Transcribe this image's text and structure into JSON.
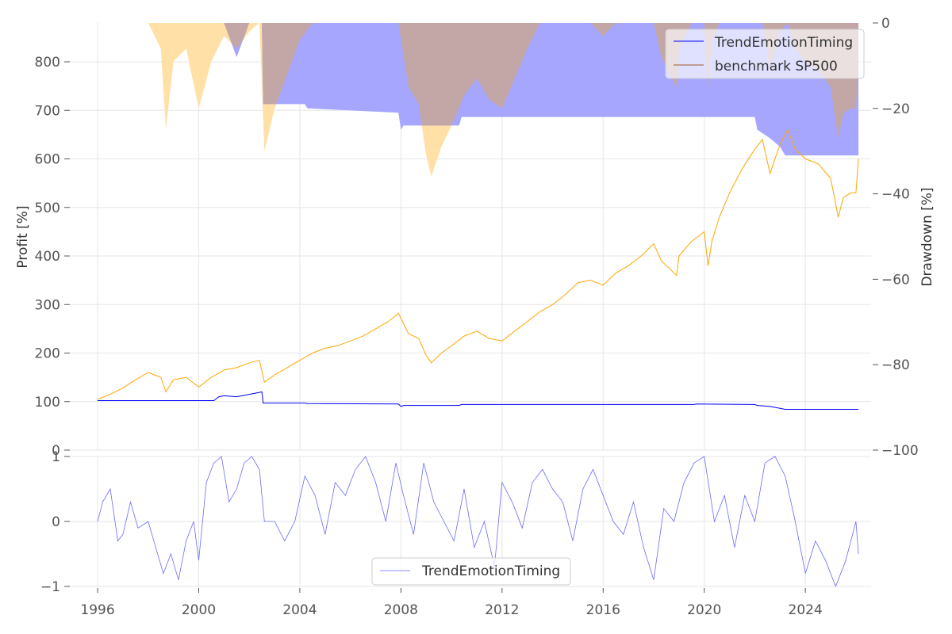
{
  "chart_data": [
    {
      "type": "line+area",
      "panel": "top",
      "title": "",
      "xlabel": "",
      "ylabel": "Profit [%]",
      "ylabel_right": "Drawdown [%]",
      "xlim": [
        1994.9,
        2026.6
      ],
      "ylim": [
        0,
        880
      ],
      "ylim_right": [
        -100,
        0
      ],
      "yticks": [
        0,
        100,
        200,
        300,
        400,
        500,
        600,
        700,
        800
      ],
      "yticks_right": [
        0,
        -20,
        -40,
        -60,
        -80,
        -100
      ],
      "legend": {
        "position": "top-right",
        "entries": [
          "TrendEmotionTiming",
          "benchmark SP500"
        ]
      },
      "colors": {
        "strategy": "#0000ff",
        "benchmark": "#ffa500",
        "strategy_dd": "#a6a6ff",
        "benchmark_dd": "#ffe1a8",
        "overlap_dd": "#c3a6a6",
        "grid": "#e6e6e6"
      },
      "series": [
        {
          "name": "TrendEmotionTiming",
          "axis": "left",
          "x": [
            1996.0,
            2000.6,
            2000.8,
            2001.0,
            2001.5,
            2002.0,
            2002.5,
            2002.55,
            2004.2,
            2004.3,
            2007.9,
            2008.0,
            2008.1,
            2010.3,
            2010.4,
            2016.0,
            2019.6,
            2019.7,
            2022.0,
            2022.1,
            2022.6,
            2023.0,
            2023.2,
            2024.0,
            2026.1
          ],
          "values": [
            102,
            102,
            110,
            112,
            110,
            115,
            120,
            97,
            97,
            96,
            95,
            90,
            92,
            92,
            94,
            94,
            94,
            95,
            94,
            92,
            90,
            86,
            84,
            84,
            84
          ]
        },
        {
          "name": "benchmark SP500",
          "axis": "left",
          "x": [
            1996.0,
            1996.5,
            1997.0,
            1997.5,
            1998.0,
            1998.5,
            1998.7,
            1999.0,
            1999.5,
            2000.0,
            2000.5,
            2001.0,
            2001.5,
            2002.0,
            2002.4,
            2002.6,
            2003.0,
            2003.5,
            2004.0,
            2004.5,
            2005.0,
            2005.5,
            2006.0,
            2006.5,
            2007.0,
            2007.5,
            2007.9,
            2008.3,
            2008.7,
            2009.0,
            2009.2,
            2009.6,
            2010.0,
            2010.5,
            2011.0,
            2011.5,
            2012.0,
            2012.5,
            2013.0,
            2013.5,
            2014.0,
            2014.5,
            2015.0,
            2015.5,
            2016.0,
            2016.5,
            2017.0,
            2017.5,
            2018.0,
            2018.3,
            2018.9,
            2019.0,
            2019.5,
            2020.0,
            2020.15,
            2020.3,
            2020.6,
            2021.0,
            2021.5,
            2022.0,
            2022.3,
            2022.6,
            2022.8,
            2023.0,
            2023.3,
            2023.6,
            2024.0,
            2024.5,
            2025.0,
            2025.3,
            2025.5,
            2025.8,
            2026.0,
            2026.1
          ],
          "values": [
            105,
            115,
            128,
            145,
            160,
            150,
            120,
            145,
            150,
            130,
            150,
            165,
            170,
            180,
            185,
            140,
            155,
            170,
            185,
            200,
            210,
            215,
            225,
            235,
            250,
            265,
            282,
            240,
            230,
            195,
            180,
            200,
            215,
            235,
            245,
            230,
            225,
            245,
            265,
            285,
            300,
            320,
            345,
            350,
            340,
            365,
            380,
            400,
            425,
            390,
            360,
            400,
            430,
            450,
            380,
            430,
            480,
            530,
            580,
            620,
            640,
            570,
            600,
            630,
            660,
            620,
            600,
            590,
            560,
            480,
            520,
            530,
            530,
            600
          ]
        }
      ],
      "drawdown_series": [
        {
          "name": "TrendEmotionTiming drawdown",
          "axis": "right",
          "x": [
            1996.0,
            2000.6,
            2000.8,
            2001.0,
            2001.5,
            2002.0,
            2002.5,
            2002.55,
            2004.2,
            2004.3,
            2007.9,
            2008.0,
            2008.1,
            2010.3,
            2010.4,
            2016.0,
            2019.6,
            2019.7,
            2022.0,
            2022.1,
            2022.6,
            2023.0,
            2023.2,
            2024.0,
            2026.1
          ],
          "values": [
            0,
            0,
            0,
            0,
            -8,
            0,
            0,
            -19,
            -19,
            -20,
            -21,
            -25,
            -24,
            -24,
            -22,
            -22,
            -22,
            -22,
            -22,
            -25,
            -27,
            -29,
            -31,
            -31,
            -31
          ]
        },
        {
          "name": "benchmark SP500 drawdown",
          "axis": "right",
          "x": [
            1996.0,
            1996.5,
            1997.0,
            1997.5,
            1998.0,
            1998.5,
            1998.7,
            1999.0,
            1999.5,
            2000.0,
            2000.5,
            2001.0,
            2001.5,
            2002.0,
            2002.4,
            2002.6,
            2003.0,
            2003.5,
            2004.0,
            2004.5,
            2005.0,
            2005.5,
            2006.0,
            2006.5,
            2007.0,
            2007.5,
            2007.9,
            2008.3,
            2008.7,
            2009.0,
            2009.2,
            2009.6,
            2010.0,
            2010.5,
            2011.0,
            2011.5,
            2012.0,
            2012.5,
            2013.0,
            2013.5,
            2014.0,
            2014.5,
            2015.0,
            2015.5,
            2016.0,
            2016.5,
            2017.0,
            2017.5,
            2018.0,
            2018.3,
            2018.9,
            2019.0,
            2019.5,
            2020.0,
            2020.15,
            2020.3,
            2020.6,
            2021.0,
            2021.5,
            2022.0,
            2022.3,
            2022.6,
            2022.8,
            2023.0,
            2023.3,
            2023.6,
            2024.0,
            2024.5,
            2025.0,
            2025.3,
            2025.5,
            2025.8,
            2026.0,
            2026.1
          ],
          "values": [
            0,
            0,
            0,
            0,
            0,
            -6,
            -25,
            -9,
            -6,
            -20,
            -9,
            -3,
            -6,
            -2,
            0,
            -30,
            -20,
            -12,
            -4,
            0,
            0,
            0,
            0,
            0,
            0,
            0,
            0,
            -15,
            -19,
            -31,
            -36,
            -29,
            -24,
            -17,
            -13,
            -18,
            -20,
            -13,
            -6,
            0,
            0,
            0,
            0,
            0,
            -3,
            0,
            0,
            0,
            0,
            -8,
            -15,
            -6,
            0,
            0,
            -15,
            -4,
            0,
            0,
            0,
            0,
            0,
            -11,
            -6,
            -2,
            0,
            -6,
            -9,
            -11,
            -15,
            -27,
            -21,
            -20,
            -20,
            -9
          ]
        }
      ]
    },
    {
      "type": "line",
      "panel": "bottom",
      "title": "",
      "xlabel": "",
      "ylabel": "",
      "xlim": [
        1994.9,
        2026.6
      ],
      "ylim": [
        -1,
        1
      ],
      "yticks": [
        -1,
        0,
        1
      ],
      "xticks": [
        1996,
        2000,
        2004,
        2008,
        2012,
        2016,
        2020,
        2024
      ],
      "legend": {
        "position": "bottom-center",
        "entries": [
          "TrendEmotionTiming"
        ]
      },
      "series": [
        {
          "name": "TrendEmotionTiming",
          "x": [
            1996.0,
            1996.2,
            1996.5,
            1996.8,
            1997.0,
            1997.3,
            1997.6,
            1998.0,
            1998.3,
            1998.6,
            1998.9,
            1999.2,
            1999.5,
            1999.8,
            2000.0,
            2000.3,
            2000.6,
            2000.9,
            2001.2,
            2001.5,
            2001.8,
            2002.1,
            2002.4,
            2002.6,
            2003.0,
            2003.4,
            2003.8,
            2004.2,
            2004.6,
            2005.0,
            2005.4,
            2005.8,
            2006.2,
            2006.6,
            2007.0,
            2007.4,
            2007.8,
            2008.1,
            2008.5,
            2008.9,
            2009.3,
            2009.7,
            2010.1,
            2010.5,
            2010.9,
            2011.3,
            2011.7,
            2012.0,
            2012.4,
            2012.8,
            2013.2,
            2013.6,
            2014.0,
            2014.4,
            2014.8,
            2015.2,
            2015.6,
            2016.0,
            2016.4,
            2016.8,
            2017.2,
            2017.6,
            2018.0,
            2018.4,
            2018.8,
            2019.2,
            2019.6,
            2020.0,
            2020.4,
            2020.8,
            2021.2,
            2021.6,
            2022.0,
            2022.4,
            2022.8,
            2023.2,
            2023.6,
            2024.0,
            2024.4,
            2024.8,
            2025.2,
            2025.6,
            2026.0,
            2026.1
          ],
          "values": [
            0,
            0.3,
            0.5,
            -0.3,
            -0.2,
            0.3,
            -0.1,
            0,
            -0.4,
            -0.8,
            -0.5,
            -0.9,
            -0.3,
            0,
            -0.6,
            0.6,
            0.9,
            1.0,
            0.3,
            0.5,
            0.9,
            1.0,
            0.8,
            0,
            0,
            -0.3,
            0,
            0.7,
            0.4,
            -0.2,
            0.6,
            0.4,
            0.8,
            1.0,
            0.6,
            0,
            0.9,
            0.4,
            -0.2,
            0.9,
            0.3,
            0,
            -0.3,
            0.5,
            -0.4,
            0,
            -0.7,
            0.6,
            0.3,
            -0.1,
            0.6,
            0.8,
            0.5,
            0.3,
            -0.3,
            0.5,
            0.8,
            0.4,
            0,
            -0.2,
            0.3,
            -0.4,
            -0.9,
            0.2,
            0,
            0.6,
            0.9,
            1.0,
            0,
            0.4,
            -0.4,
            0.4,
            0,
            0.9,
            1.0,
            0.7,
            0,
            -0.8,
            -0.3,
            -0.6,
            -1.0,
            -0.6,
            0,
            -0.5
          ]
        }
      ]
    }
  ]
}
